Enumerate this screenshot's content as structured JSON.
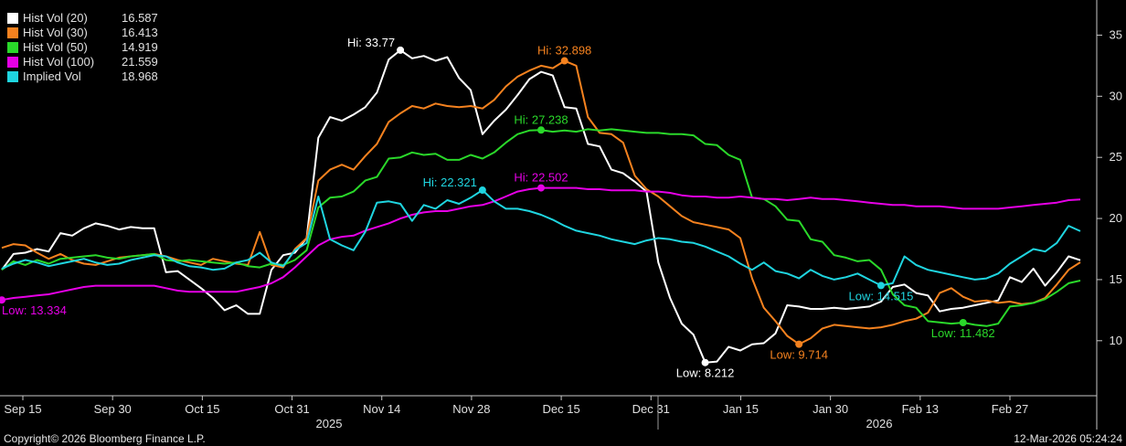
{
  "chart_data": {
    "type": "line",
    "x_ticks": [
      "Sep 15",
      "Sep 30",
      "Oct 15",
      "Oct 31",
      "Nov 14",
      "Nov 28",
      "Dec 15",
      "Dec 31",
      "Jan 15",
      "Jan 30",
      "Feb 13",
      "Feb 27"
    ],
    "year_labels": [
      "2025",
      "2026"
    ],
    "y_ticks": [
      10,
      15,
      20,
      25,
      30,
      35
    ],
    "ylim": [
      5.5,
      37.5
    ],
    "grid": false,
    "legend_position": "top-left",
    "series": [
      {
        "name": "Hist Vol (20)",
        "last": "16.587",
        "color": "#ffffff",
        "values": [
          15.8,
          17.1,
          17.2,
          17.5,
          17.3,
          18.8,
          18.6,
          19.2,
          19.6,
          19.4,
          19.1,
          19.3,
          19.2,
          19.2,
          15.6,
          15.7,
          15.0,
          14.3,
          13.5,
          12.5,
          12.9,
          12.2,
          12.2,
          15.8,
          17.0,
          17.2,
          18.4,
          26.6,
          28.3,
          28.0,
          28.5,
          29.1,
          30.3,
          33.0,
          33.77,
          33.1,
          33.3,
          32.9,
          33.2,
          31.5,
          30.5,
          26.9,
          28.0,
          28.9,
          30.1,
          31.4,
          32.0,
          31.7,
          29.1,
          29.0,
          26.1,
          25.9,
          24.0,
          23.7,
          23.0,
          22.2,
          16.4,
          13.5,
          11.4,
          10.5,
          8.212,
          8.3,
          9.5,
          9.2,
          9.7,
          9.8,
          10.6,
          12.9,
          12.8,
          12.6,
          12.6,
          12.7,
          12.6,
          12.7,
          12.8,
          13.2,
          14.4,
          14.6,
          13.9,
          13.7,
          12.4,
          12.6,
          12.7,
          12.9,
          13.1,
          13.3,
          15.2,
          14.8,
          15.9,
          14.5,
          15.6,
          16.9,
          16.587
        ]
      },
      {
        "name": "Hist Vol (30)",
        "last": "16.413",
        "color": "#f5821f",
        "values": [
          17.6,
          17.9,
          17.8,
          17.2,
          16.7,
          17.1,
          16.6,
          16.3,
          16.2,
          16.5,
          16.8,
          16.9,
          17.0,
          17.1,
          16.9,
          16.6,
          16.4,
          16.2,
          16.7,
          16.5,
          16.3,
          16.2,
          18.9,
          16.2,
          16.0,
          17.5,
          18.4,
          23.1,
          24.0,
          24.4,
          24.0,
          25.1,
          26.1,
          27.9,
          28.6,
          29.2,
          29.0,
          29.4,
          29.2,
          29.1,
          29.2,
          29.0,
          29.7,
          30.8,
          31.6,
          32.1,
          32.5,
          32.3,
          32.898,
          32.5,
          28.3,
          27.0,
          26.9,
          26.2,
          23.5,
          22.4,
          21.8,
          21.0,
          20.2,
          19.7,
          19.5,
          19.3,
          19.1,
          18.4,
          15.1,
          12.7,
          11.6,
          10.4,
          9.714,
          10.2,
          11.0,
          11.3,
          11.2,
          11.1,
          11.0,
          11.1,
          11.3,
          11.6,
          11.8,
          12.3,
          13.9,
          14.3,
          13.6,
          13.2,
          13.3,
          13.1,
          13.2,
          13.0,
          13.1,
          13.5,
          14.6,
          15.8,
          16.413
        ]
      },
      {
        "name": "Hist Vol (50)",
        "last": "14.919",
        "color": "#2ad82a",
        "values": [
          15.8,
          16.5,
          16.2,
          16.6,
          16.3,
          16.7,
          16.8,
          16.9,
          17.0,
          16.8,
          16.7,
          16.9,
          17.0,
          17.1,
          16.6,
          16.5,
          16.6,
          16.5,
          16.4,
          16.3,
          16.4,
          16.1,
          16.0,
          16.3,
          16.2,
          16.6,
          17.4,
          20.9,
          21.7,
          21.8,
          22.2,
          23.1,
          23.4,
          24.9,
          25.0,
          25.4,
          25.2,
          25.3,
          24.8,
          24.8,
          25.2,
          24.9,
          25.4,
          26.2,
          26.9,
          27.2,
          27.238,
          27.1,
          27.2,
          27.1,
          27.3,
          27.2,
          27.3,
          27.2,
          27.1,
          27.0,
          27.0,
          26.9,
          26.9,
          26.8,
          26.1,
          26.0,
          25.2,
          24.8,
          21.7,
          21.6,
          21.0,
          19.9,
          19.8,
          18.3,
          18.1,
          17.0,
          16.8,
          16.5,
          16.6,
          15.8,
          13.8,
          12.9,
          12.7,
          11.6,
          11.5,
          11.4,
          11.482,
          11.3,
          11.2,
          11.4,
          12.8,
          12.9,
          13.1,
          13.4,
          14.0,
          14.7,
          14.919
        ]
      },
      {
        "name": "Hist Vol (100)",
        "last": "21.559",
        "color": "#e600e6",
        "values": [
          13.334,
          13.5,
          13.6,
          13.7,
          13.8,
          14.0,
          14.2,
          14.4,
          14.5,
          14.5,
          14.5,
          14.5,
          14.5,
          14.5,
          14.3,
          14.1,
          14.0,
          14.0,
          14.0,
          14.0,
          14.0,
          14.2,
          14.4,
          14.7,
          15.2,
          16.0,
          16.9,
          17.8,
          18.3,
          18.5,
          18.6,
          19.0,
          19.3,
          19.6,
          20.0,
          20.3,
          20.5,
          20.6,
          20.6,
          20.8,
          21.0,
          21.1,
          21.4,
          21.8,
          22.2,
          22.4,
          22.502,
          22.5,
          22.5,
          22.5,
          22.4,
          22.4,
          22.3,
          22.3,
          22.3,
          22.2,
          22.2,
          22.1,
          21.9,
          21.8,
          21.8,
          21.7,
          21.7,
          21.8,
          21.7,
          21.6,
          21.6,
          21.5,
          21.6,
          21.7,
          21.6,
          21.6,
          21.5,
          21.4,
          21.3,
          21.2,
          21.1,
          21.1,
          21.0,
          21.0,
          21.0,
          20.9,
          20.8,
          20.8,
          20.8,
          20.8,
          20.9,
          21.0,
          21.1,
          21.2,
          21.3,
          21.5,
          21.559
        ]
      },
      {
        "name": "Implied Vol",
        "last": "18.968",
        "color": "#1fd5e0",
        "values": [
          15.9,
          16.3,
          16.6,
          16.4,
          16.1,
          16.3,
          16.5,
          16.7,
          16.4,
          16.2,
          16.3,
          16.6,
          16.8,
          17.0,
          16.9,
          16.4,
          16.1,
          16.0,
          15.8,
          15.9,
          16.4,
          16.6,
          17.2,
          16.4,
          16.1,
          17.4,
          18.0,
          21.8,
          18.3,
          17.8,
          17.4,
          18.9,
          21.3,
          21.4,
          21.2,
          19.8,
          21.1,
          20.8,
          21.5,
          21.2,
          21.7,
          22.321,
          21.4,
          20.8,
          20.8,
          20.6,
          20.3,
          19.9,
          19.4,
          19.0,
          18.8,
          18.6,
          18.3,
          18.1,
          17.9,
          18.2,
          18.4,
          18.3,
          18.1,
          18.0,
          17.7,
          17.3,
          16.9,
          16.3,
          15.8,
          16.4,
          15.7,
          15.5,
          15.1,
          15.8,
          15.3,
          15.0,
          15.2,
          15.5,
          15.0,
          14.515,
          14.7,
          16.9,
          16.2,
          15.8,
          15.6,
          15.4,
          15.2,
          15.0,
          15.1,
          15.5,
          16.3,
          16.9,
          17.5,
          17.3,
          18.0,
          19.4,
          18.968
        ]
      }
    ],
    "annotations": [
      {
        "series": 0,
        "index": 34,
        "text": "Hi: 33.77",
        "pos": "left"
      },
      {
        "series": 1,
        "index": 48,
        "text": "Hi: 32.898",
        "pos": "above"
      },
      {
        "series": 2,
        "index": 46,
        "text": "Hi: 27.238",
        "pos": "above"
      },
      {
        "series": 3,
        "index": 46,
        "text": "Hi: 22.502",
        "pos": "above"
      },
      {
        "series": 4,
        "index": 41,
        "text": "Hi: 22.321",
        "pos": "left"
      },
      {
        "series": 3,
        "index": 0,
        "text": "Low: 13.334",
        "pos": "below"
      },
      {
        "series": 0,
        "index": 60,
        "text": "Low: 8.212",
        "pos": "below"
      },
      {
        "series": 1,
        "index": 68,
        "text": "Low: 9.714",
        "pos": "below"
      },
      {
        "series": 4,
        "index": 75,
        "text": "Low: 14.515",
        "pos": "below"
      },
      {
        "series": 2,
        "index": 82,
        "text": "Low: 11.482",
        "pos": "below"
      }
    ]
  },
  "footer": {
    "copyright": "Copyright© 2026 Bloomberg Finance L.P.",
    "timestamp": "12-Mar-2026 05:24:24"
  }
}
